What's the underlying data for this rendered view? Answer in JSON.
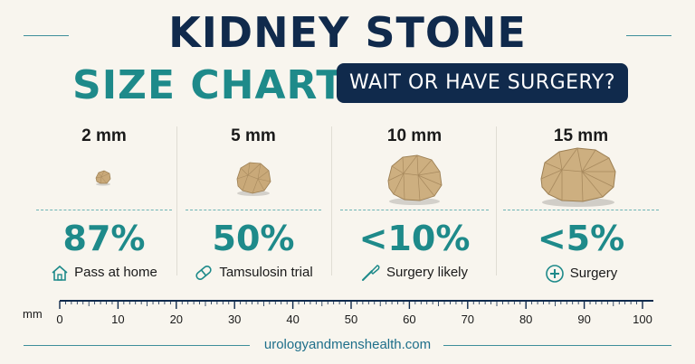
{
  "header": {
    "title_line1": "KIDNEY STONE",
    "title_line2": "SIZE CHART:",
    "subtitle_pill": "WAIT OR HAVE SURGERY?"
  },
  "columns": [
    {
      "size": "2 mm",
      "percent": "87%",
      "action": "Pass at home",
      "icon": "home-icon"
    },
    {
      "size": "5 mm",
      "percent": "50%",
      "action": "Tamsulosin trial",
      "icon": "pill-icon"
    },
    {
      "size": "10 mm",
      "percent": "<10%",
      "action": "Surgery likely",
      "icon": "scalpel-icon"
    },
    {
      "size": "15 mm",
      "percent": "<5%",
      "action": "Surgery",
      "icon": "plus-circle-icon"
    }
  ],
  "ruler": {
    "unit": "mm",
    "labels": [
      "0",
      "10",
      "20",
      "30",
      "40",
      "50",
      "60",
      "70",
      "80",
      "90",
      "100"
    ]
  },
  "footer": {
    "website": "urologyandmenshealth.com"
  },
  "colors": {
    "navy": "#102a4c",
    "teal": "#1e8a8a",
    "background": "#f8f5ee",
    "stone": "#c9a979"
  }
}
